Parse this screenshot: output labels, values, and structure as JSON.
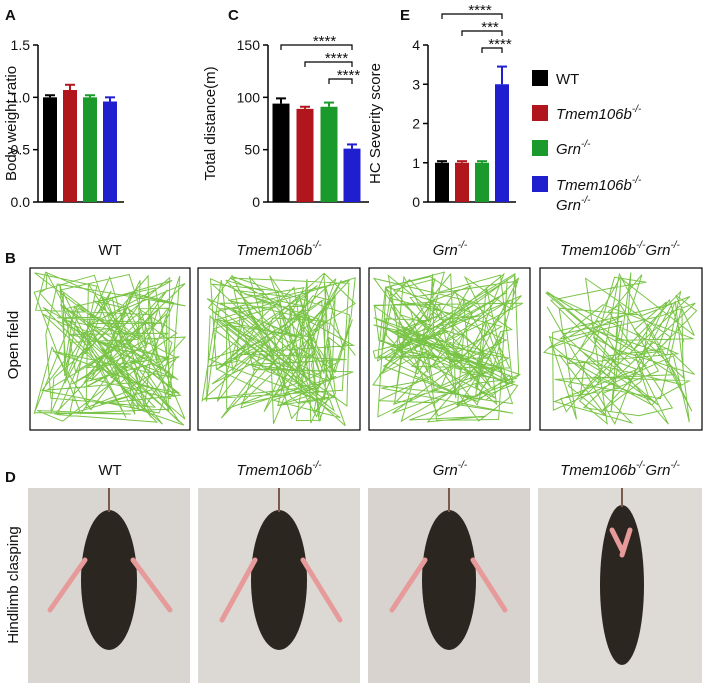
{
  "chart_data": [
    {
      "type": "bar",
      "panel": "A",
      "ylabel": "Body weight ratio",
      "categories": [
        null,
        null,
        null,
        null
      ],
      "values": [
        1.0,
        1.07,
        1.0,
        0.96
      ],
      "errors": [
        0.02,
        0.05,
        0.02,
        0.04
      ],
      "colors": [
        "#000000",
        "#b0161c",
        "#1a9a2a",
        "#1f1fd0"
      ],
      "ylim": [
        0,
        1.5
      ],
      "yticks": [
        {
          "value": 0,
          "label": "0.0"
        },
        {
          "value": 0.5,
          "label": "0.5"
        },
        {
          "value": 1,
          "label": "1.0"
        },
        {
          "value": 1.5,
          "label": "1.5"
        }
      ],
      "significance": []
    },
    {
      "type": "bar",
      "panel": "C",
      "ylabel": "Total distance(m)",
      "categories": [
        null,
        null,
        null,
        null
      ],
      "values": [
        94,
        89,
        91,
        51
      ],
      "errors": [
        5,
        2,
        4,
        4
      ],
      "colors": [
        "#000000",
        "#b0161c",
        "#1a9a2a",
        "#1f1fd0"
      ],
      "ylim": [
        0,
        150
      ],
      "yticks": [
        0,
        50,
        100,
        150
      ],
      "significance": [
        "****",
        "****",
        "****"
      ]
    },
    {
      "type": "bar",
      "panel": "E",
      "ylabel": "HC Severity score",
      "categories": [
        null,
        null,
        null,
        null
      ],
      "values": [
        1.0,
        1.0,
        1.0,
        3.0
      ],
      "errors": [
        0.04,
        0.04,
        0.04,
        0.45
      ],
      "colors": [
        "#000000",
        "#b0161c",
        "#1a9a2a",
        "#1f1fd0"
      ],
      "ylim": [
        0,
        4
      ],
      "yticks": [
        0,
        1,
        2,
        3,
        4
      ],
      "significance": [
        "****",
        "***",
        "****"
      ]
    }
  ],
  "legend": [
    {
      "name": [
        {
          "text": "WT"
        }
      ],
      "color": "#000000"
    },
    {
      "name": [
        {
          "text": "Tmem106b",
          "sup": "-/-"
        }
      ],
      "color": "#b0161c"
    },
    {
      "name": [
        {
          "text": "Grn",
          "sup": "-/-"
        }
      ],
      "color": "#1a9a2a"
    },
    {
      "name": [
        {
          "text": "Tmem106b",
          "sup": "-/-"
        },
        {
          "text": "Grn",
          "sup": "-/-"
        }
      ],
      "color": "#1f1fd0"
    }
  ],
  "open_field": {
    "panel": "B",
    "row_label": "Open field",
    "columns": [
      [
        {
          "text": "WT"
        }
      ],
      [
        {
          "text": "Tmem106b",
          "sup": "-/-"
        }
      ],
      [
        {
          "text": "Grn",
          "sup": "-/-"
        }
      ],
      [
        {
          "text": "Tmem106b",
          "sup": "-/-"
        },
        {
          "text": "Grn",
          "sup": "-/-"
        }
      ]
    ]
  },
  "clasping": {
    "panel": "D",
    "row_label": "Hindlimb clasping",
    "columns": [
      [
        {
          "text": "WT"
        }
      ],
      [
        {
          "text": "Tmem106b",
          "sup": "-/-"
        }
      ],
      [
        {
          "text": "Grn",
          "sup": "-/-"
        }
      ],
      [
        {
          "text": "Tmem106b",
          "sup": "-/-"
        },
        {
          "text": "Grn",
          "sup": "-/-"
        }
      ]
    ]
  }
}
